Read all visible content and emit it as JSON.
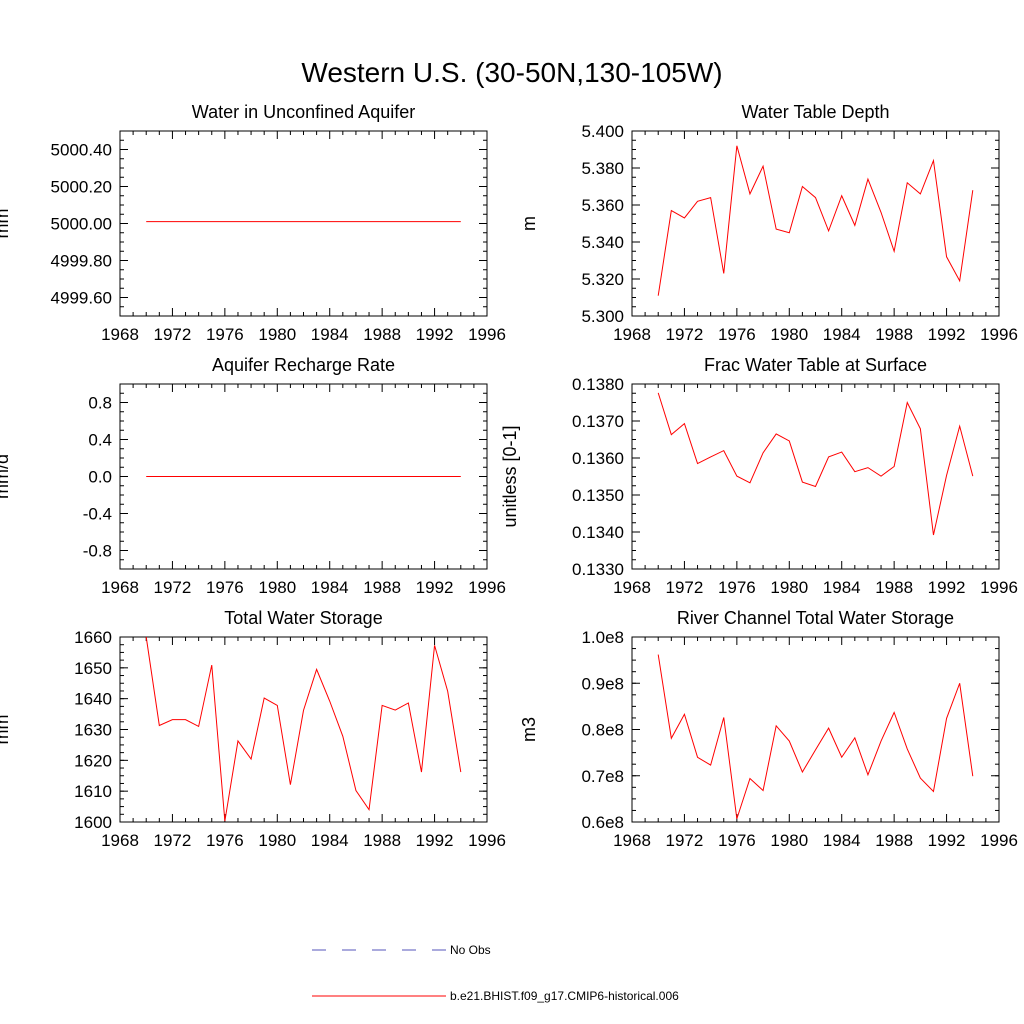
{
  "figure": {
    "title": "Western U.S. (30-50N,130-105W)"
  },
  "colors": {
    "model": "#ff0000",
    "obs": "#5555bb"
  },
  "legend": {
    "obs_label": "No Obs",
    "model_label": "b.e21.BHIST.f09_g17.CMIP6-historical.006"
  },
  "chart_data": [
    {
      "type": "line",
      "title": "Water in Unconfined Aquifer",
      "ylabel": "mm",
      "xlim": [
        1968,
        1996
      ],
      "ylim": [
        4999.5,
        5000.5
      ],
      "xticks": [
        1968,
        1972,
        1976,
        1980,
        1984,
        1988,
        1992,
        1996
      ],
      "yticks": [
        4999.6,
        4999.8,
        5000.0,
        5000.2,
        5000.4
      ],
      "ytick_labels": [
        "4999.60",
        "4999.80",
        "5000.00",
        "5000.20",
        "5000.40"
      ],
      "yminor": 0.05,
      "x": [
        1970,
        1971,
        1972,
        1973,
        1974,
        1975,
        1976,
        1977,
        1978,
        1979,
        1980,
        1981,
        1982,
        1983,
        1984,
        1985,
        1986,
        1987,
        1988,
        1989,
        1990,
        1991,
        1992,
        1993,
        1994
      ],
      "series": [
        {
          "values": [
            5000.01,
            5000.01,
            5000.01,
            5000.01,
            5000.01,
            5000.01,
            5000.01,
            5000.01,
            5000.01,
            5000.01,
            5000.01,
            5000.01,
            5000.01,
            5000.01,
            5000.01,
            5000.01,
            5000.01,
            5000.01,
            5000.01,
            5000.01,
            5000.01,
            5000.01,
            5000.01,
            5000.01,
            5000.01
          ]
        }
      ]
    },
    {
      "type": "line",
      "title": "Water Table Depth",
      "ylabel": "m",
      "xlim": [
        1968,
        1996
      ],
      "ylim": [
        5.3,
        5.4
      ],
      "xticks": [
        1968,
        1972,
        1976,
        1980,
        1984,
        1988,
        1992,
        1996
      ],
      "yticks": [
        5.3,
        5.32,
        5.34,
        5.36,
        5.38,
        5.4
      ],
      "ytick_labels": [
        "5.300",
        "5.320",
        "5.340",
        "5.360",
        "5.380",
        "5.400"
      ],
      "yminor": 0.005,
      "x": [
        1970,
        1971,
        1972,
        1973,
        1974,
        1975,
        1976,
        1977,
        1978,
        1979,
        1980,
        1981,
        1982,
        1983,
        1984,
        1985,
        1986,
        1987,
        1988,
        1989,
        1990,
        1991,
        1992,
        1993,
        1994
      ],
      "series": [
        {
          "values": [
            5.311,
            5.357,
            5.353,
            5.362,
            5.364,
            5.323,
            5.392,
            5.366,
            5.381,
            5.347,
            5.345,
            5.37,
            5.364,
            5.346,
            5.365,
            5.349,
            5.374,
            5.356,
            5.335,
            5.372,
            5.366,
            5.384,
            5.332,
            5.319,
            5.368
          ]
        }
      ]
    },
    {
      "type": "line",
      "title": "Aquifer Recharge Rate",
      "ylabel": "mm/d",
      "xlim": [
        1968,
        1996
      ],
      "ylim": [
        -1.0,
        1.0
      ],
      "xticks": [
        1968,
        1972,
        1976,
        1980,
        1984,
        1988,
        1992,
        1996
      ],
      "yticks": [
        -0.8,
        -0.4,
        0.0,
        0.4,
        0.8
      ],
      "ytick_labels": [
        "-0.8",
        "-0.4",
        "0.0",
        "0.4",
        "0.8"
      ],
      "yminor": 0.1,
      "x": [
        1970,
        1971,
        1972,
        1973,
        1974,
        1975,
        1976,
        1977,
        1978,
        1979,
        1980,
        1981,
        1982,
        1983,
        1984,
        1985,
        1986,
        1987,
        1988,
        1989,
        1990,
        1991,
        1992,
        1993,
        1994
      ],
      "series": [
        {
          "values": [
            0,
            0,
            0,
            0,
            0,
            0,
            0,
            0,
            0,
            0,
            0,
            0,
            0,
            0,
            0,
            0,
            0,
            0,
            0,
            0,
            0,
            0,
            0,
            0,
            0
          ]
        }
      ]
    },
    {
      "type": "line",
      "title": "Frac Water Table at Surface",
      "ylabel": "unitless [0-1]",
      "xlim": [
        1968,
        1996
      ],
      "ylim": [
        0.133,
        0.138
      ],
      "xticks": [
        1968,
        1972,
        1976,
        1980,
        1984,
        1988,
        1992,
        1996
      ],
      "yticks": [
        0.133,
        0.134,
        0.135,
        0.136,
        0.137,
        0.138
      ],
      "ytick_labels": [
        "0.1330",
        "0.1340",
        "0.1350",
        "0.1360",
        "0.1370",
        "0.1380"
      ],
      "yminor": 0.00025,
      "x": [
        1970,
        1971,
        1972,
        1973,
        1974,
        1975,
        1976,
        1977,
        1978,
        1979,
        1980,
        1981,
        1982,
        1983,
        1984,
        1985,
        1986,
        1987,
        1988,
        1989,
        1990,
        1991,
        1992,
        1993,
        1994
      ],
      "series": [
        {
          "values": [
            0.13776,
            0.13663,
            0.13693,
            0.13585,
            0.13603,
            0.1362,
            0.13551,
            0.13533,
            0.13614,
            0.13665,
            0.13646,
            0.13535,
            0.13523,
            0.13603,
            0.13616,
            0.13563,
            0.13574,
            0.13551,
            0.13577,
            0.1375,
            0.13679,
            0.13392,
            0.13553,
            0.13686,
            0.13551
          ]
        }
      ]
    },
    {
      "type": "line",
      "title": "Total Water Storage",
      "ylabel": "mm",
      "xlim": [
        1968,
        1996
      ],
      "ylim": [
        1600,
        1660
      ],
      "xticks": [
        1968,
        1972,
        1976,
        1980,
        1984,
        1988,
        1992,
        1996
      ],
      "yticks": [
        1600,
        1610,
        1620,
        1630,
        1640,
        1650,
        1660
      ],
      "ytick_labels": [
        "1600",
        "1610",
        "1620",
        "1630",
        "1640",
        "1650",
        "1660"
      ],
      "yminor": 2.5,
      "x": [
        1970,
        1971,
        1972,
        1973,
        1974,
        1975,
        1976,
        1977,
        1978,
        1979,
        1980,
        1981,
        1982,
        1983,
        1984,
        1985,
        1986,
        1987,
        1988,
        1989,
        1990,
        1991,
        1992,
        1993,
        1994
      ],
      "series": [
        {
          "values": [
            1660.0,
            1631.3,
            1633.2,
            1633.2,
            1631.0,
            1650.9,
            1600.3,
            1626.3,
            1620.4,
            1640.2,
            1637.8,
            1612.1,
            1636.2,
            1649.5,
            1639.2,
            1627.8,
            1610.2,
            1604.0,
            1637.8,
            1636.3,
            1638.6,
            1616.2,
            1657.3,
            1642.4,
            1616.2
          ]
        }
      ]
    },
    {
      "type": "line",
      "title": "River Channel Total Water Storage",
      "ylabel": "m3",
      "xlim": [
        1968,
        1996
      ],
      "ylim": [
        60000000.0,
        100000000.0
      ],
      "xticks": [
        1968,
        1972,
        1976,
        1980,
        1984,
        1988,
        1992,
        1996
      ],
      "yticks": [
        60000000.0,
        70000000.0,
        80000000.0,
        90000000.0,
        100000000.0
      ],
      "ytick_labels": [
        "0.6e8",
        "0.7e8",
        "0.8e8",
        "0.9e8",
        "1.0e8"
      ],
      "yminor": 2500000.0,
      "x": [
        1970,
        1971,
        1972,
        1973,
        1974,
        1975,
        1976,
        1977,
        1978,
        1979,
        1980,
        1981,
        1982,
        1983,
        1984,
        1985,
        1986,
        1987,
        1988,
        1989,
        1990,
        1991,
        1992,
        1993,
        1994
      ],
      "series": [
        {
          "values": [
            96200000.0,
            78100000.0,
            83300000.0,
            74000000.0,
            72300000.0,
            82600000.0,
            60700000.0,
            69400000.0,
            66800000.0,
            80800000.0,
            77500000.0,
            70800000.0,
            75600000.0,
            80300000.0,
            74000000.0,
            78200000.0,
            70200000.0,
            77500000.0,
            83700000.0,
            75800000.0,
            69500000.0,
            66600000.0,
            82400000.0,
            90000000.0,
            69900000.0
          ]
        }
      ]
    }
  ]
}
